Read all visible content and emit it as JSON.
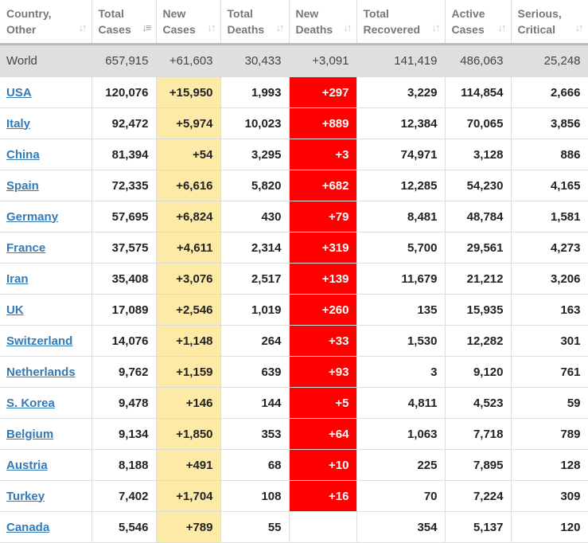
{
  "headers": [
    {
      "label": "Country,\nOther",
      "name": "country",
      "active": false
    },
    {
      "label": "Total\nCases",
      "name": "total-cases",
      "active": true
    },
    {
      "label": "New\nCases",
      "name": "new-cases",
      "active": false
    },
    {
      "label": "Total\nDeaths",
      "name": "total-deaths",
      "active": false
    },
    {
      "label": "New\nDeaths",
      "name": "new-deaths",
      "active": false
    },
    {
      "label": "Total\nRecovered",
      "name": "total-recovered",
      "active": false
    },
    {
      "label": "Active\nCases",
      "name": "active-cases",
      "active": false
    },
    {
      "label": "Serious,\nCritical",
      "name": "serious-critical",
      "active": false
    }
  ],
  "world": [
    "World",
    "657,915",
    "+61,603",
    "30,433",
    "+3,091",
    "141,419",
    "486,063",
    "25,248"
  ],
  "rows": [
    [
      "USA",
      "120,076",
      "+15,950",
      "1,993",
      "+297",
      "3,229",
      "114,854",
      "2,666"
    ],
    [
      "Italy",
      "92,472",
      "+5,974",
      "10,023",
      "+889",
      "12,384",
      "70,065",
      "3,856"
    ],
    [
      "China",
      "81,394",
      "+54",
      "3,295",
      "+3",
      "74,971",
      "3,128",
      "886"
    ],
    [
      "Spain",
      "72,335",
      "+6,616",
      "5,820",
      "+682",
      "12,285",
      "54,230",
      "4,165"
    ],
    [
      "Germany",
      "57,695",
      "+6,824",
      "430",
      "+79",
      "8,481",
      "48,784",
      "1,581"
    ],
    [
      "France",
      "37,575",
      "+4,611",
      "2,314",
      "+319",
      "5,700",
      "29,561",
      "4,273"
    ],
    [
      "Iran",
      "35,408",
      "+3,076",
      "2,517",
      "+139",
      "11,679",
      "21,212",
      "3,206"
    ],
    [
      "UK",
      "17,089",
      "+2,546",
      "1,019",
      "+260",
      "135",
      "15,935",
      "163"
    ],
    [
      "Switzerland",
      "14,076",
      "+1,148",
      "264",
      "+33",
      "1,530",
      "12,282",
      "301"
    ],
    [
      "Netherlands",
      "9,762",
      "+1,159",
      "639",
      "+93",
      "3",
      "9,120",
      "761"
    ],
    [
      "S. Korea",
      "9,478",
      "+146",
      "144",
      "+5",
      "4,811",
      "4,523",
      "59"
    ],
    [
      "Belgium",
      "9,134",
      "+1,850",
      "353",
      "+64",
      "1,063",
      "7,718",
      "789"
    ],
    [
      "Austria",
      "8,188",
      "+491",
      "68",
      "+10",
      "225",
      "7,895",
      "128"
    ],
    [
      "Turkey",
      "7,402",
      "+1,704",
      "108",
      "+16",
      "70",
      "7,224",
      "309"
    ],
    [
      "Canada",
      "5,546",
      "+789",
      "55",
      "",
      "354",
      "5,137",
      "120"
    ]
  ],
  "colors": {
    "new_cases_bg": "#fdeaa7",
    "new_deaths_bg": "#ff0000",
    "link": "#337ab7",
    "world_bg": "#dfdfdf"
  },
  "icons": {
    "sort": "sort-icon",
    "sort_desc": "sort-desc-icon"
  }
}
